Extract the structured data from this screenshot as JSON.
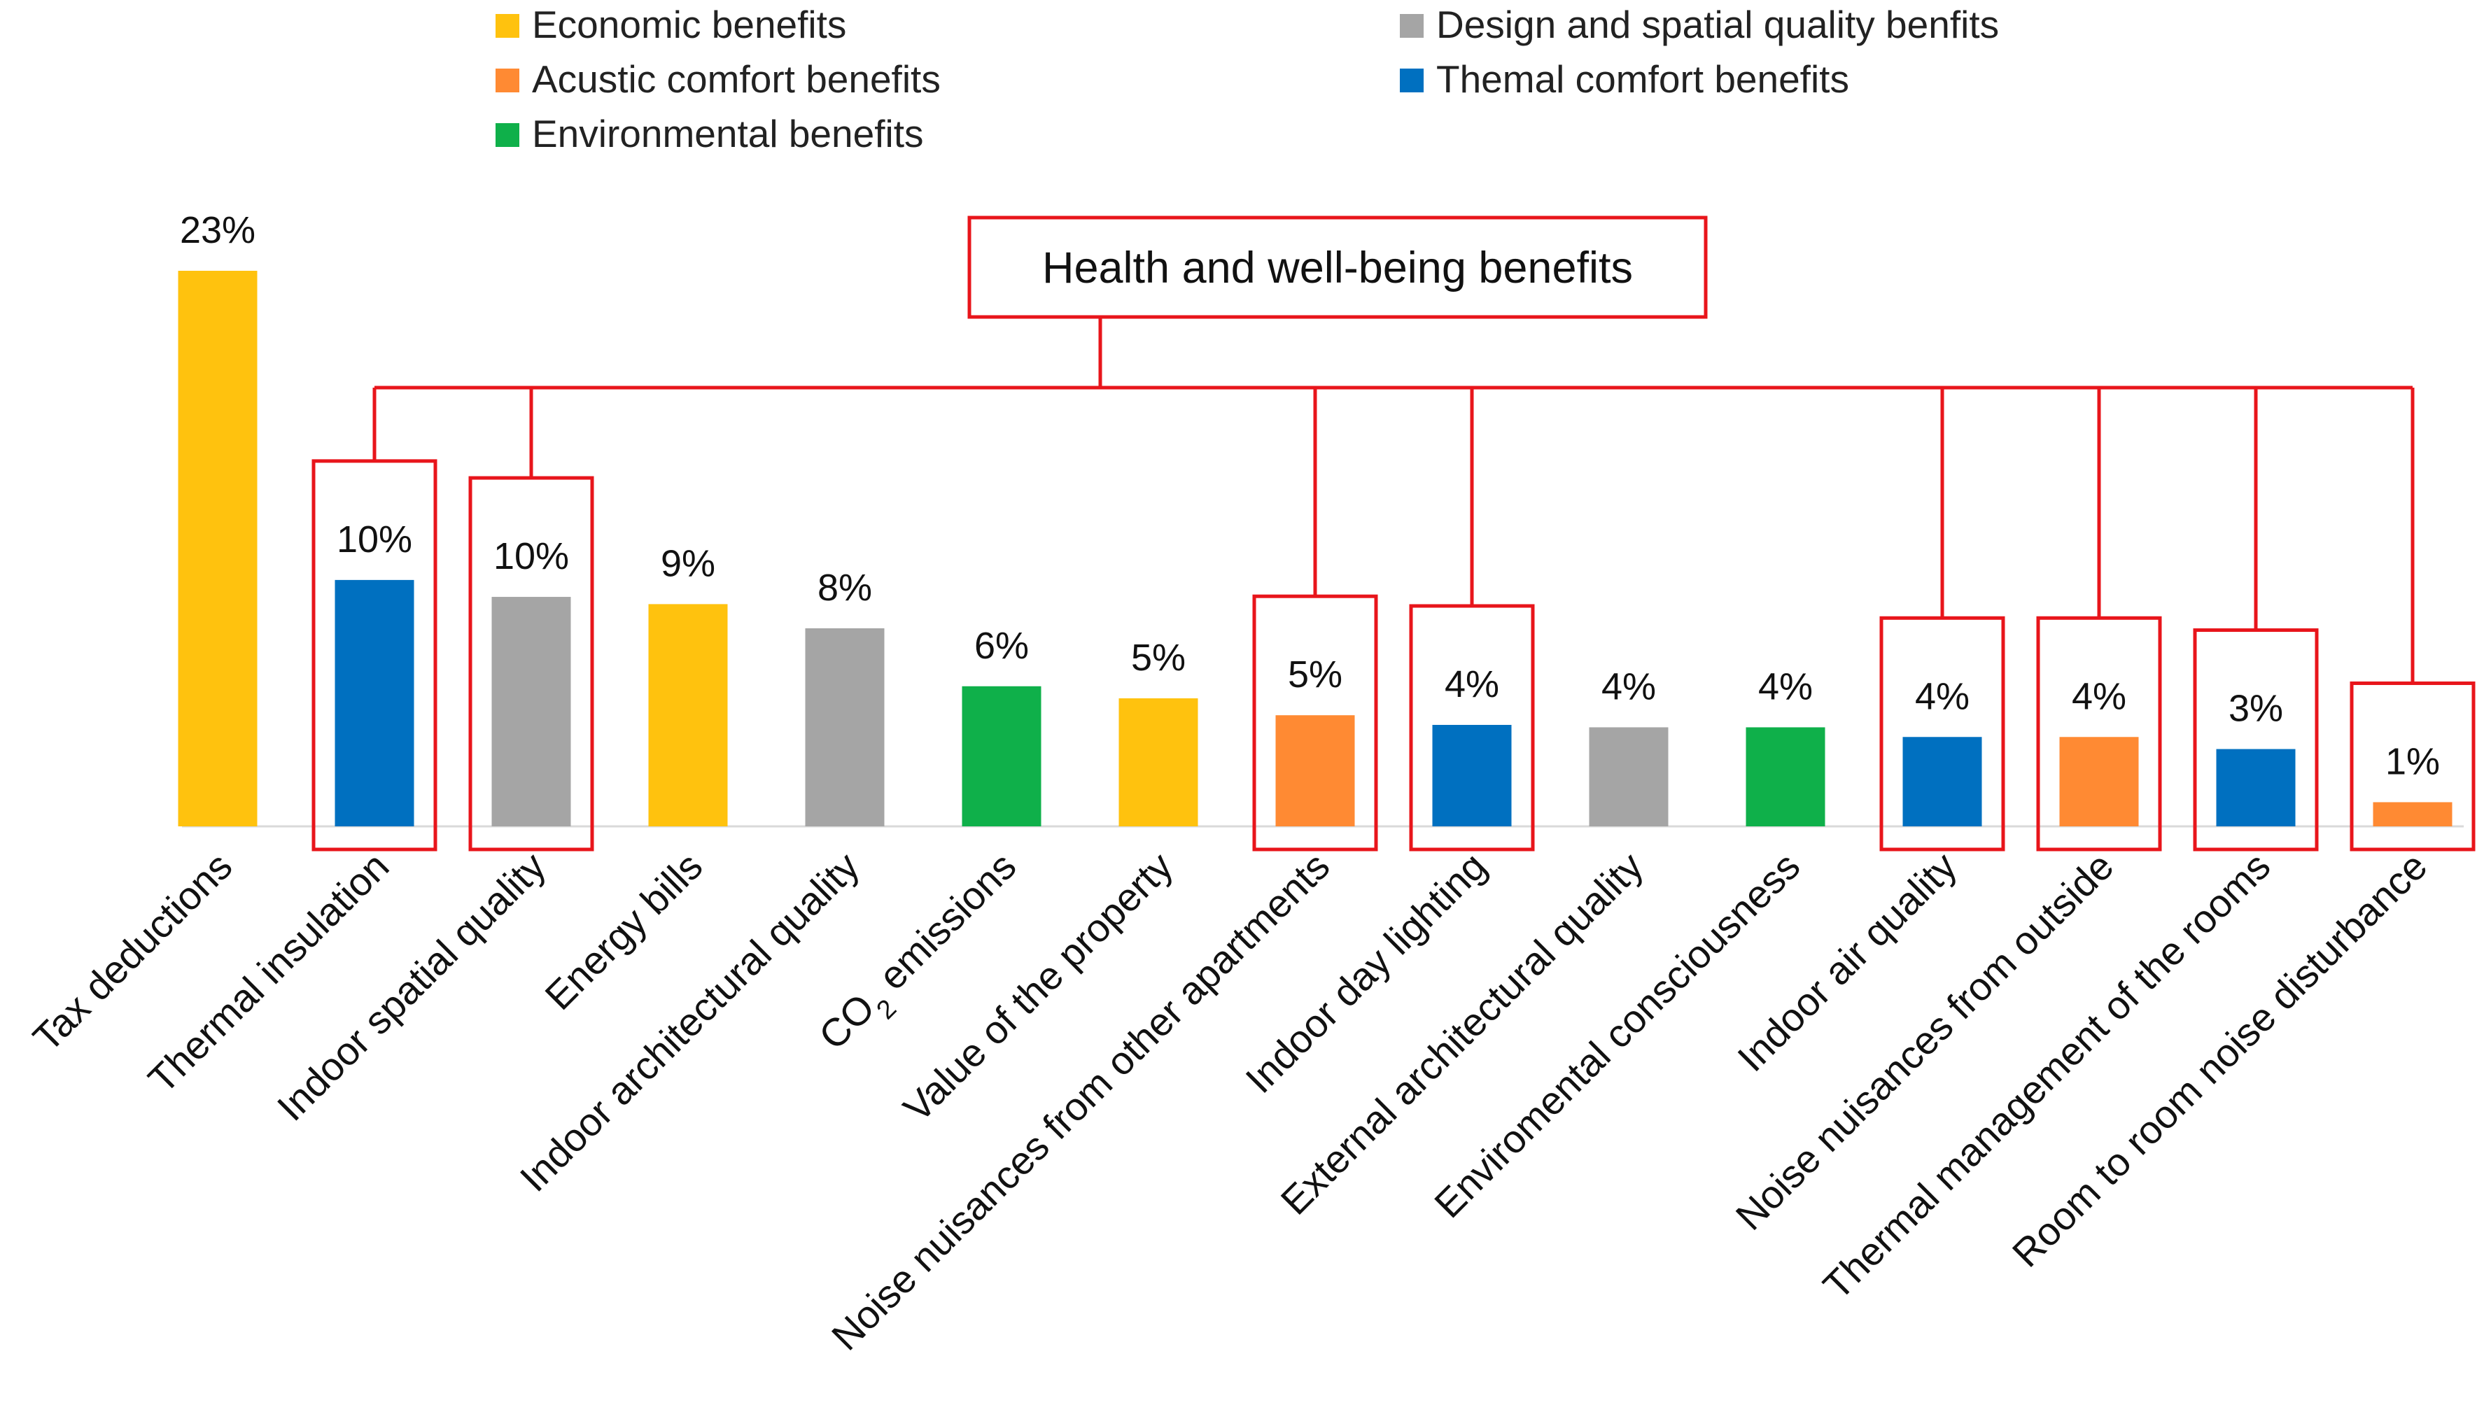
{
  "colors": {
    "economic": "#FFC20E",
    "design": "#A5A5A5",
    "acoustic": "#FF8A33",
    "thermal": "#0070C0",
    "environmental": "#0FB04A",
    "highlight": "#E8151B"
  },
  "legend": [
    {
      "key": "economic",
      "label": "Economic benefits"
    },
    {
      "key": "design",
      "label": "Design and spatial quality benfits"
    },
    {
      "key": "acoustic",
      "label": "Acustic comfort benefits"
    },
    {
      "key": "thermal",
      "label": "Themal comfort benefits"
    },
    {
      "key": "environmental",
      "label": "Environmental benefits"
    }
  ],
  "group_label": "Health and well-being benefits",
  "chart_data": {
    "type": "bar",
    "title": "",
    "xlabel": "",
    "ylabel": "",
    "ylim": [
      0,
      25
    ],
    "categories": [
      "Tax deductions",
      "Thermal insulation",
      "Indoor spatial quality",
      "Energy bills",
      "Indoor architectural quality",
      "CO2 emissions",
      "Value of the property",
      "Noise nuisances from other apartments",
      "Indoor day lighting",
      "External architectural quality",
      "Enviromental consciousness",
      "Indoor air quality",
      "Noise nuisances from outside",
      "Thermal management of the rooms",
      "Room to room noise disturbance"
    ],
    "values": [
      23,
      10,
      10,
      9,
      8,
      6,
      5,
      5,
      4,
      4,
      4,
      4,
      4,
      3,
      1
    ],
    "heights": [
      23,
      10.2,
      9.5,
      9.2,
      8.2,
      5.8,
      5.3,
      4.6,
      4.2,
      4.1,
      4.1,
      3.7,
      3.7,
      3.2,
      1.0
    ],
    "value_labels": [
      "23%",
      "10%",
      "10%",
      "9%",
      "8%",
      "6%",
      "5%",
      "5%",
      "4%",
      "4%",
      "4%",
      "4%",
      "4%",
      "3%",
      "1%"
    ],
    "benefit_types": [
      "economic",
      "thermal",
      "design",
      "economic",
      "design",
      "environmental",
      "economic",
      "acoustic",
      "thermal",
      "design",
      "environmental",
      "thermal",
      "acoustic",
      "thermal",
      "acoustic"
    ],
    "health_wellbeing_highlight": [
      false,
      true,
      true,
      false,
      false,
      false,
      false,
      true,
      true,
      false,
      false,
      true,
      true,
      true,
      true
    ]
  }
}
